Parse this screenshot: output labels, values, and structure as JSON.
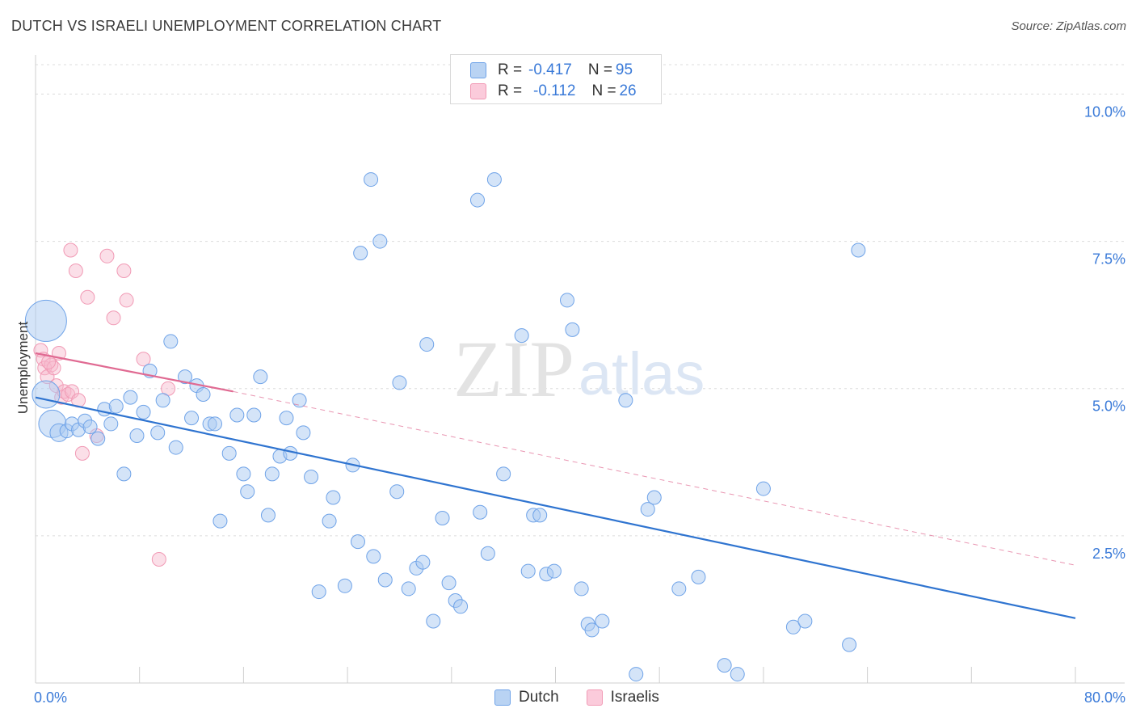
{
  "header": {
    "title": "DUTCH VS ISRAELI UNEMPLOYMENT CORRELATION CHART",
    "source": "Source: ZipAtlas.com"
  },
  "legend": {
    "dutch": {
      "r_label": "R =",
      "r_value": "-0.417",
      "n_label": "N =",
      "n_value": "95"
    },
    "israelis": {
      "r_label": "R =",
      "r_value": "-0.112",
      "n_label": "N =",
      "n_value": "26"
    }
  },
  "bottom_legend": {
    "dutch": "Dutch",
    "israelis": "Israelis"
  },
  "watermark": {
    "zip": "ZIP",
    "atlas": "atlas"
  },
  "chart_data": {
    "type": "scatter",
    "xlabel": "",
    "ylabel": "Unemployment",
    "xlim": [
      0,
      80
    ],
    "ylim": [
      0,
      10.5
    ],
    "x_tick_labels": [
      {
        "value": 0,
        "label": "0.0%"
      },
      {
        "value": 80,
        "label": "80.0%"
      }
    ],
    "y_tick_labels": [
      {
        "value": 2.5,
        "label": "2.5%"
      },
      {
        "value": 5.0,
        "label": "5.0%"
      },
      {
        "value": 7.5,
        "label": "7.5%"
      },
      {
        "value": 10.0,
        "label": "10.0%"
      }
    ],
    "colors": {
      "dutch": "#6fa3e8",
      "dutch_line": "#2f74d0",
      "israelis": "#f19ab5",
      "israelis_line": "#e06a92"
    },
    "series": [
      {
        "name": "Dutch",
        "trend": {
          "x0": 0,
          "y0": 4.85,
          "x1": 80,
          "y1": 1.1
        },
        "points": [
          [
            0.8,
            6.15,
            3
          ],
          [
            0.8,
            4.9,
            2
          ],
          [
            1.3,
            4.4,
            2
          ],
          [
            1.8,
            4.25,
            1.3
          ],
          [
            2.4,
            4.28,
            1
          ],
          [
            2.8,
            4.4,
            1
          ],
          [
            3.3,
            4.3,
            1
          ],
          [
            3.8,
            4.45,
            1
          ],
          [
            4.2,
            4.35,
            1
          ],
          [
            4.8,
            4.15,
            1
          ],
          [
            5.3,
            4.65,
            1
          ],
          [
            5.8,
            4.4,
            1
          ],
          [
            6.2,
            4.7,
            1
          ],
          [
            6.8,
            3.55,
            1
          ],
          [
            7.3,
            4.85,
            1
          ],
          [
            7.8,
            4.2,
            1
          ],
          [
            8.3,
            4.6,
            1
          ],
          [
            8.8,
            5.3,
            1
          ],
          [
            9.4,
            4.25,
            1
          ],
          [
            9.8,
            4.8,
            1
          ],
          [
            10.4,
            5.8,
            1
          ],
          [
            10.8,
            4.0,
            1
          ],
          [
            11.5,
            5.2,
            1
          ],
          [
            12.0,
            4.5,
            1
          ],
          [
            12.4,
            5.05,
            1
          ],
          [
            12.9,
            4.9,
            1
          ],
          [
            13.4,
            4.4,
            1
          ],
          [
            13.8,
            4.4,
            1
          ],
          [
            14.2,
            2.75,
            1
          ],
          [
            14.9,
            3.9,
            1
          ],
          [
            15.5,
            4.55,
            1
          ],
          [
            16.0,
            3.55,
            1
          ],
          [
            16.3,
            3.25,
            1
          ],
          [
            16.8,
            4.55,
            1
          ],
          [
            17.3,
            5.2,
            1
          ],
          [
            17.9,
            2.85,
            1
          ],
          [
            18.2,
            3.55,
            1
          ],
          [
            18.8,
            3.85,
            1
          ],
          [
            19.3,
            4.5,
            1
          ],
          [
            19.6,
            3.9,
            1
          ],
          [
            20.3,
            4.8,
            1
          ],
          [
            20.6,
            4.25,
            1
          ],
          [
            21.2,
            3.5,
            1
          ],
          [
            21.8,
            1.55,
            1
          ],
          [
            22.6,
            2.75,
            1
          ],
          [
            22.9,
            3.15,
            1
          ],
          [
            23.8,
            1.65,
            1
          ],
          [
            24.4,
            3.7,
            1
          ],
          [
            24.8,
            2.4,
            1
          ],
          [
            25.0,
            7.3,
            1
          ],
          [
            25.8,
            8.55,
            1
          ],
          [
            26.0,
            2.15,
            1
          ],
          [
            26.5,
            7.5,
            1
          ],
          [
            26.9,
            1.75,
            1
          ],
          [
            27.8,
            3.25,
            1
          ],
          [
            28.0,
            5.1,
            1
          ],
          [
            28.7,
            1.6,
            1
          ],
          [
            29.3,
            1.95,
            1
          ],
          [
            29.8,
            2.05,
            1
          ],
          [
            30.1,
            5.75,
            1
          ],
          [
            30.6,
            1.05,
            1
          ],
          [
            31.3,
            2.8,
            1
          ],
          [
            31.8,
            1.7,
            1
          ],
          [
            32.3,
            1.4,
            1
          ],
          [
            32.7,
            1.3,
            1
          ],
          [
            34.0,
            8.2,
            1
          ],
          [
            34.2,
            2.9,
            1
          ],
          [
            34.8,
            2.2,
            1
          ],
          [
            35.3,
            8.55,
            1
          ],
          [
            36.0,
            3.55,
            1
          ],
          [
            37.4,
            5.9,
            1
          ],
          [
            37.9,
            1.9,
            1
          ],
          [
            38.3,
            2.85,
            1
          ],
          [
            38.8,
            2.85,
            1
          ],
          [
            39.3,
            1.85,
            1
          ],
          [
            39.9,
            1.9,
            1
          ],
          [
            40.9,
            6.5,
            1
          ],
          [
            41.3,
            6.0,
            1
          ],
          [
            42.0,
            1.6,
            1
          ],
          [
            42.5,
            1.0,
            1
          ],
          [
            42.8,
            0.9,
            1
          ],
          [
            43.6,
            1.05,
            1
          ],
          [
            45.4,
            4.8,
            1
          ],
          [
            46.2,
            0.15,
            1
          ],
          [
            47.1,
            2.95,
            1
          ],
          [
            47.6,
            3.15,
            1
          ],
          [
            49.5,
            1.6,
            1
          ],
          [
            51.0,
            1.8,
            1
          ],
          [
            53.0,
            0.3,
            1
          ],
          [
            54.0,
            0.15,
            1
          ],
          [
            56.0,
            3.3,
            1
          ],
          [
            58.3,
            0.95,
            1
          ],
          [
            59.2,
            1.05,
            1
          ],
          [
            62.6,
            0.65,
            1
          ],
          [
            63.3,
            7.35,
            1
          ]
        ]
      },
      {
        "name": "Israelis",
        "trend": {
          "x0": 0,
          "y0": 5.6,
          "x1": 15.2,
          "y1": 4.95,
          "dash_x1": 80,
          "dash_y1": 2.0
        },
        "points": [
          [
            0.4,
            5.65,
            1
          ],
          [
            0.6,
            5.5,
            1
          ],
          [
            0.7,
            5.35,
            1
          ],
          [
            0.9,
            5.2,
            1
          ],
          [
            1.2,
            5.4,
            1
          ],
          [
            1.4,
            5.35,
            1
          ],
          [
            1.6,
            5.05,
            1
          ],
          [
            1.8,
            5.6,
            1
          ],
          [
            2.0,
            4.85,
            1
          ],
          [
            2.2,
            4.95,
            1
          ],
          [
            2.5,
            4.9,
            1
          ],
          [
            2.7,
            7.35,
            1
          ],
          [
            2.8,
            4.95,
            1
          ],
          [
            3.1,
            7.0,
            1
          ],
          [
            3.3,
            4.8,
            1
          ],
          [
            3.6,
            3.9,
            1
          ],
          [
            4.0,
            6.55,
            1
          ],
          [
            4.7,
            4.2,
            1
          ],
          [
            5.5,
            7.25,
            1
          ],
          [
            6.0,
            6.2,
            1
          ],
          [
            6.8,
            7.0,
            1
          ],
          [
            7.0,
            6.5,
            1
          ],
          [
            8.3,
            5.5,
            1
          ],
          [
            9.5,
            2.1,
            1
          ],
          [
            10.2,
            5.0,
            1
          ],
          [
            1.0,
            5.45,
            1
          ]
        ]
      }
    ]
  }
}
